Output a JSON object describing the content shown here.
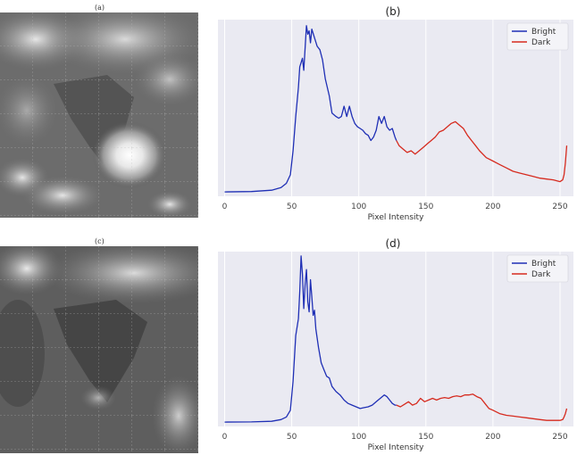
{
  "figure": {
    "panels": [
      {
        "label": "(a)",
        "type": "satellite-image"
      },
      {
        "label": "(c)",
        "type": "satellite-image"
      }
    ],
    "colors": {
      "bright": "#1f2fb5",
      "dark": "#d62b1f",
      "plot_bg": "#eaeaf2",
      "grid": "#ffffff"
    }
  },
  "chart_data": [
    {
      "panel": "(b)",
      "type": "line",
      "title": "(b)",
      "xlabel": "Pixel Intensity",
      "ylabel": "",
      "xlim": [
        -5,
        260
      ],
      "ylim": [
        0,
        1
      ],
      "xticks": [
        0,
        50,
        100,
        150,
        200,
        250
      ],
      "grid": true,
      "legend_placement": "top-right",
      "series": [
        {
          "name": "Bright",
          "x": [
            0,
            20,
            35,
            42,
            46,
            49,
            51,
            53,
            55,
            56,
            58,
            59,
            60,
            61,
            62,
            63,
            64,
            65,
            67,
            69,
            71,
            73,
            75,
            78,
            80,
            83,
            85,
            87,
            89,
            91,
            93,
            95,
            97,
            99,
            101,
            103,
            105,
            107,
            109,
            111,
            113,
            115,
            117,
            119,
            121,
            123,
            125,
            127,
            128
          ],
          "y": [
            0.01,
            0.012,
            0.02,
            0.035,
            0.06,
            0.11,
            0.25,
            0.45,
            0.62,
            0.74,
            0.79,
            0.72,
            0.85,
            0.98,
            0.93,
            0.95,
            0.88,
            0.96,
            0.91,
            0.86,
            0.84,
            0.78,
            0.67,
            0.57,
            0.47,
            0.45,
            0.44,
            0.45,
            0.51,
            0.45,
            0.51,
            0.45,
            0.41,
            0.39,
            0.38,
            0.37,
            0.35,
            0.34,
            0.31,
            0.33,
            0.37,
            0.45,
            0.41,
            0.45,
            0.39,
            0.37,
            0.38,
            0.33,
            0.31
          ]
        },
        {
          "name": "Dark",
          "x": [
            128,
            130,
            133,
            136,
            139,
            142,
            145,
            148,
            151,
            154,
            157,
            160,
            163,
            166,
            169,
            172,
            175,
            178,
            181,
            184,
            187,
            190,
            195,
            200,
            205,
            210,
            215,
            220,
            225,
            230,
            235,
            240,
            245,
            250,
            252,
            253,
            254,
            255
          ],
          "y": [
            0.31,
            0.28,
            0.26,
            0.24,
            0.25,
            0.23,
            0.25,
            0.27,
            0.29,
            0.31,
            0.33,
            0.36,
            0.37,
            0.39,
            0.41,
            0.42,
            0.4,
            0.38,
            0.34,
            0.31,
            0.28,
            0.25,
            0.21,
            0.19,
            0.17,
            0.15,
            0.13,
            0.12,
            0.11,
            0.1,
            0.09,
            0.085,
            0.08,
            0.07,
            0.08,
            0.11,
            0.18,
            0.28
          ]
        }
      ]
    },
    {
      "panel": "(d)",
      "type": "line",
      "title": "(d)",
      "xlabel": "Pixel Intensity",
      "ylabel": "",
      "xlim": [
        -5,
        260
      ],
      "ylim": [
        0,
        1
      ],
      "xticks": [
        0,
        50,
        100,
        150,
        200,
        250
      ],
      "grid": true,
      "legend_placement": "top-right",
      "series": [
        {
          "name": "Bright",
          "x": [
            0,
            20,
            35,
            42,
            46,
            49,
            51,
            53,
            55,
            56,
            57,
            58,
            59,
            60,
            61,
            62,
            63,
            64,
            65,
            66,
            67,
            68,
            70,
            72,
            74,
            76,
            78,
            80,
            83,
            86,
            89,
            92,
            95,
            98,
            101,
            104,
            107,
            110,
            113,
            116,
            119,
            121,
            123,
            125,
            127,
            128
          ],
          "y": [
            0.01,
            0.011,
            0.015,
            0.025,
            0.04,
            0.08,
            0.25,
            0.52,
            0.62,
            0.78,
            0.99,
            0.88,
            0.68,
            0.82,
            0.91,
            0.72,
            0.66,
            0.85,
            0.75,
            0.64,
            0.67,
            0.56,
            0.45,
            0.36,
            0.32,
            0.28,
            0.27,
            0.22,
            0.19,
            0.17,
            0.14,
            0.12,
            0.11,
            0.1,
            0.09,
            0.095,
            0.1,
            0.11,
            0.13,
            0.15,
            0.17,
            0.16,
            0.14,
            0.12,
            0.11,
            0.11
          ]
        },
        {
          "name": "Dark",
          "x": [
            128,
            131,
            134,
            137,
            140,
            143,
            146,
            149,
            152,
            155,
            158,
            161,
            164,
            167,
            170,
            173,
            176,
            179,
            182,
            185,
            188,
            191,
            194,
            197,
            200,
            205,
            210,
            215,
            220,
            225,
            230,
            235,
            240,
            245,
            250,
            252,
            253,
            254,
            255
          ],
          "y": [
            0.11,
            0.1,
            0.115,
            0.13,
            0.11,
            0.12,
            0.15,
            0.13,
            0.14,
            0.15,
            0.14,
            0.15,
            0.155,
            0.15,
            0.16,
            0.165,
            0.16,
            0.17,
            0.17,
            0.175,
            0.16,
            0.15,
            0.12,
            0.09,
            0.08,
            0.06,
            0.05,
            0.045,
            0.04,
            0.035,
            0.03,
            0.025,
            0.02,
            0.02,
            0.02,
            0.025,
            0.04,
            0.06,
            0.09
          ]
        }
      ]
    }
  ]
}
